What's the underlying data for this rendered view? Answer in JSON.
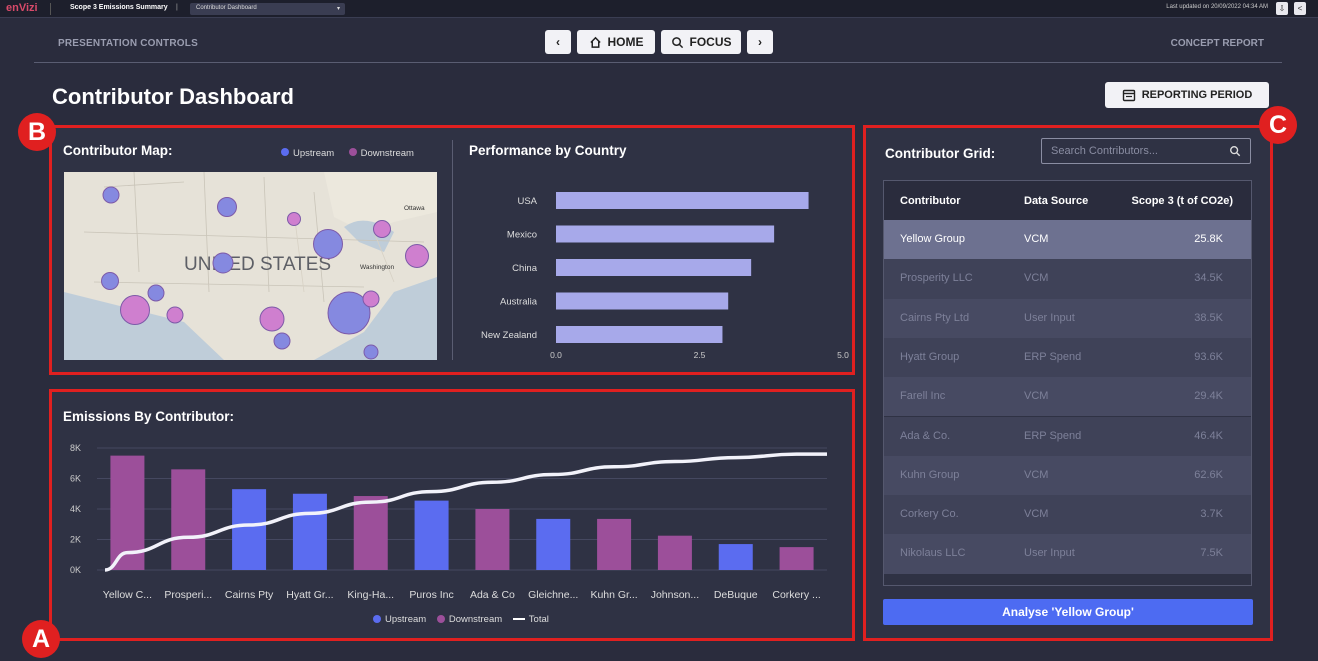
{
  "topbar": {
    "logo": "enVizi",
    "app_title": "Scope 3 Emissions Summary",
    "separator": "|",
    "dashboard_select": "Contributor Dashboard",
    "last_updated": "Last updated on 20/09/2022 04:34 AM"
  },
  "controls": {
    "presentation_label": "PRESENTATION CONTROLS",
    "home_label": "HOME",
    "focus_label": "FOCUS",
    "concept_report_label": "CONCEPT REPORT"
  },
  "page": {
    "title": "Contributor Dashboard",
    "reporting_period_label": "REPORTING PERIOD"
  },
  "badges": {
    "a": "A",
    "b": "B",
    "c": "C"
  },
  "colors": {
    "upstream": "#5b6cf0",
    "downstream": "#9c4f9a",
    "accent_red": "#e02020",
    "performance_bar": "#a7a9ea"
  },
  "map_panel": {
    "title": "Contributor Map:",
    "legend_upstream": "Upstream",
    "legend_downstream": "Downstream",
    "map_text": "UNITED STATES",
    "city_labels": [
      "Ottawa",
      "Washington"
    ]
  },
  "performance_panel": {
    "title": "Performance by Country",
    "chart_data": {
      "type": "bar",
      "orientation": "horizontal",
      "categories": [
        "USA",
        "Mexico",
        "China",
        "Australia",
        "New Zealand"
      ],
      "values": [
        4.4,
        3.8,
        3.4,
        3.0,
        2.9
      ],
      "xlim": [
        0,
        5
      ],
      "ticks": [
        "0.0",
        "2.5",
        "5.0"
      ],
      "color": "#a7a9ea"
    }
  },
  "emissions_panel": {
    "title": "Emissions By Contributor:",
    "chart_data": {
      "type": "bar",
      "categories": [
        "Yellow C...",
        "Prosperi...",
        "Cairns Pty",
        "Hyatt Gr...",
        "King-Ha...",
        "Puros Inc",
        "Ada & Co",
        "Gleichne...",
        "Kuhn Gr...",
        "Johnson...",
        "DeBuque",
        "Corkery ..."
      ],
      "values": [
        7500,
        6600,
        5300,
        5000,
        4850,
        4550,
        4000,
        3350,
        3350,
        2250,
        1700,
        1500
      ],
      "groups": [
        "Downstream",
        "Downstream",
        "Upstream",
        "Upstream",
        "Downstream",
        "Upstream",
        "Downstream",
        "Upstream",
        "Downstream",
        "Downstream",
        "Upstream",
        "Downstream"
      ],
      "ylim": [
        0,
        8000
      ],
      "yticks": [
        "0K",
        "2K",
        "4K",
        "6K",
        "8K"
      ],
      "total_line": "cumulative curve",
      "legend": [
        "Upstream",
        "Downstream",
        "Total"
      ],
      "legend_placement": "bottom-center"
    }
  },
  "grid_panel": {
    "title": "Contributor Grid:",
    "search_placeholder": "Search Contributors...",
    "columns": [
      "Contributor",
      "Data Source",
      "Scope 3 (t of CO2e)"
    ],
    "rows": [
      {
        "contributor": "Yellow Group",
        "source": "VCM",
        "scope3": "25.8K"
      },
      {
        "contributor": "Prosperity LLC",
        "source": "VCM",
        "scope3": "34.5K"
      },
      {
        "contributor": "Cairns Pty Ltd",
        "source": "User Input",
        "scope3": "38.5K"
      },
      {
        "contributor": "Hyatt Group",
        "source": "ERP Spend",
        "scope3": "93.6K"
      },
      {
        "contributor": "Farell Inc",
        "source": "VCM",
        "scope3": "29.4K"
      },
      {
        "contributor": "Ada & Co.",
        "source": "ERP Spend",
        "scope3": "46.4K"
      },
      {
        "contributor": "Kuhn Group",
        "source": "VCM",
        "scope3": "62.6K"
      },
      {
        "contributor": "Corkery Co.",
        "source": "VCM",
        "scope3": "3.7K"
      },
      {
        "contributor": "Nikolaus LLC",
        "source": "User Input",
        "scope3": "7.5K"
      }
    ],
    "analyse_label": "Analyse 'Yellow Group'"
  }
}
